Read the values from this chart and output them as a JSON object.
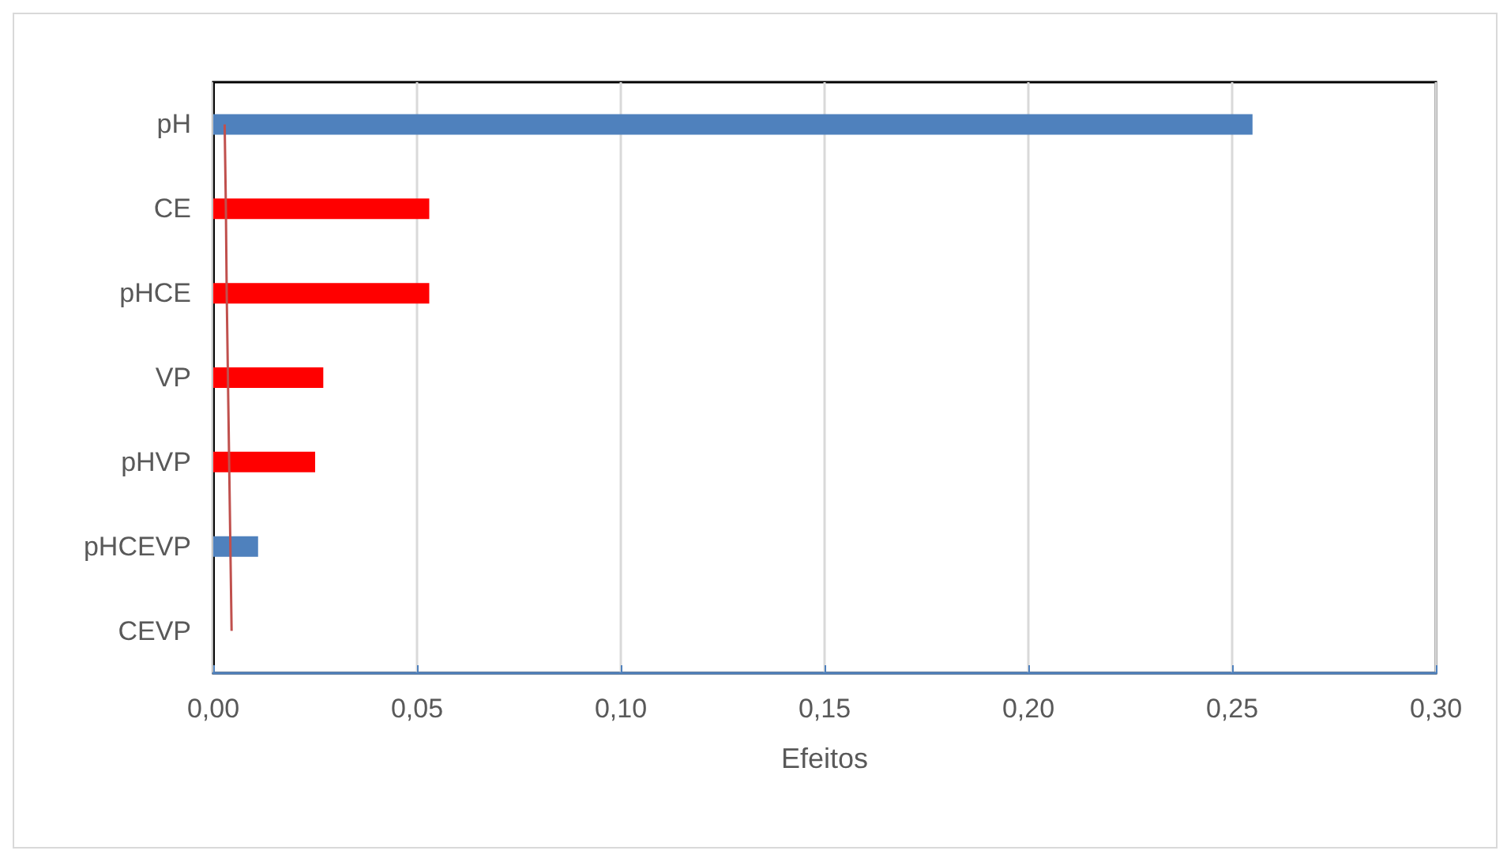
{
  "chart_data": {
    "type": "bar",
    "orientation": "horizontal",
    "xlabel": "Efeitos",
    "categories": [
      "pH",
      "CE",
      "pHCE",
      "VP",
      "pHVP",
      "pHCEVP",
      "CEVP"
    ],
    "series": [
      {
        "colors": [
          "#4f81bd",
          "#ff0000",
          "#ff0000",
          "#ff0000",
          "#ff0000",
          "#4f81bd",
          "#4f81bd"
        ],
        "values": [
          0.255,
          0.053,
          0.053,
          0.027,
          0.025,
          0.011,
          0
        ]
      },
      {
        "type": "line",
        "color": "#c0504d",
        "values": [
          0.0028,
          0.0031,
          0.0033,
          0.0036,
          0.0039,
          0.0042,
          0.0045
        ]
      }
    ],
    "xlim": [
      0,
      0.3
    ],
    "xticks": [
      {
        "value": 0,
        "label": "0,00"
      },
      {
        "value": 0.05,
        "label": "0,05"
      },
      {
        "value": 0.1,
        "label": "0,10"
      },
      {
        "value": 0.15,
        "label": "0,15"
      },
      {
        "value": 0.2,
        "label": "0,20"
      },
      {
        "value": 0.25,
        "label": "0,25"
      },
      {
        "value": 0.3,
        "label": "0,30"
      }
    ],
    "grid": "x",
    "marker": "none",
    "line_style": "solid"
  }
}
